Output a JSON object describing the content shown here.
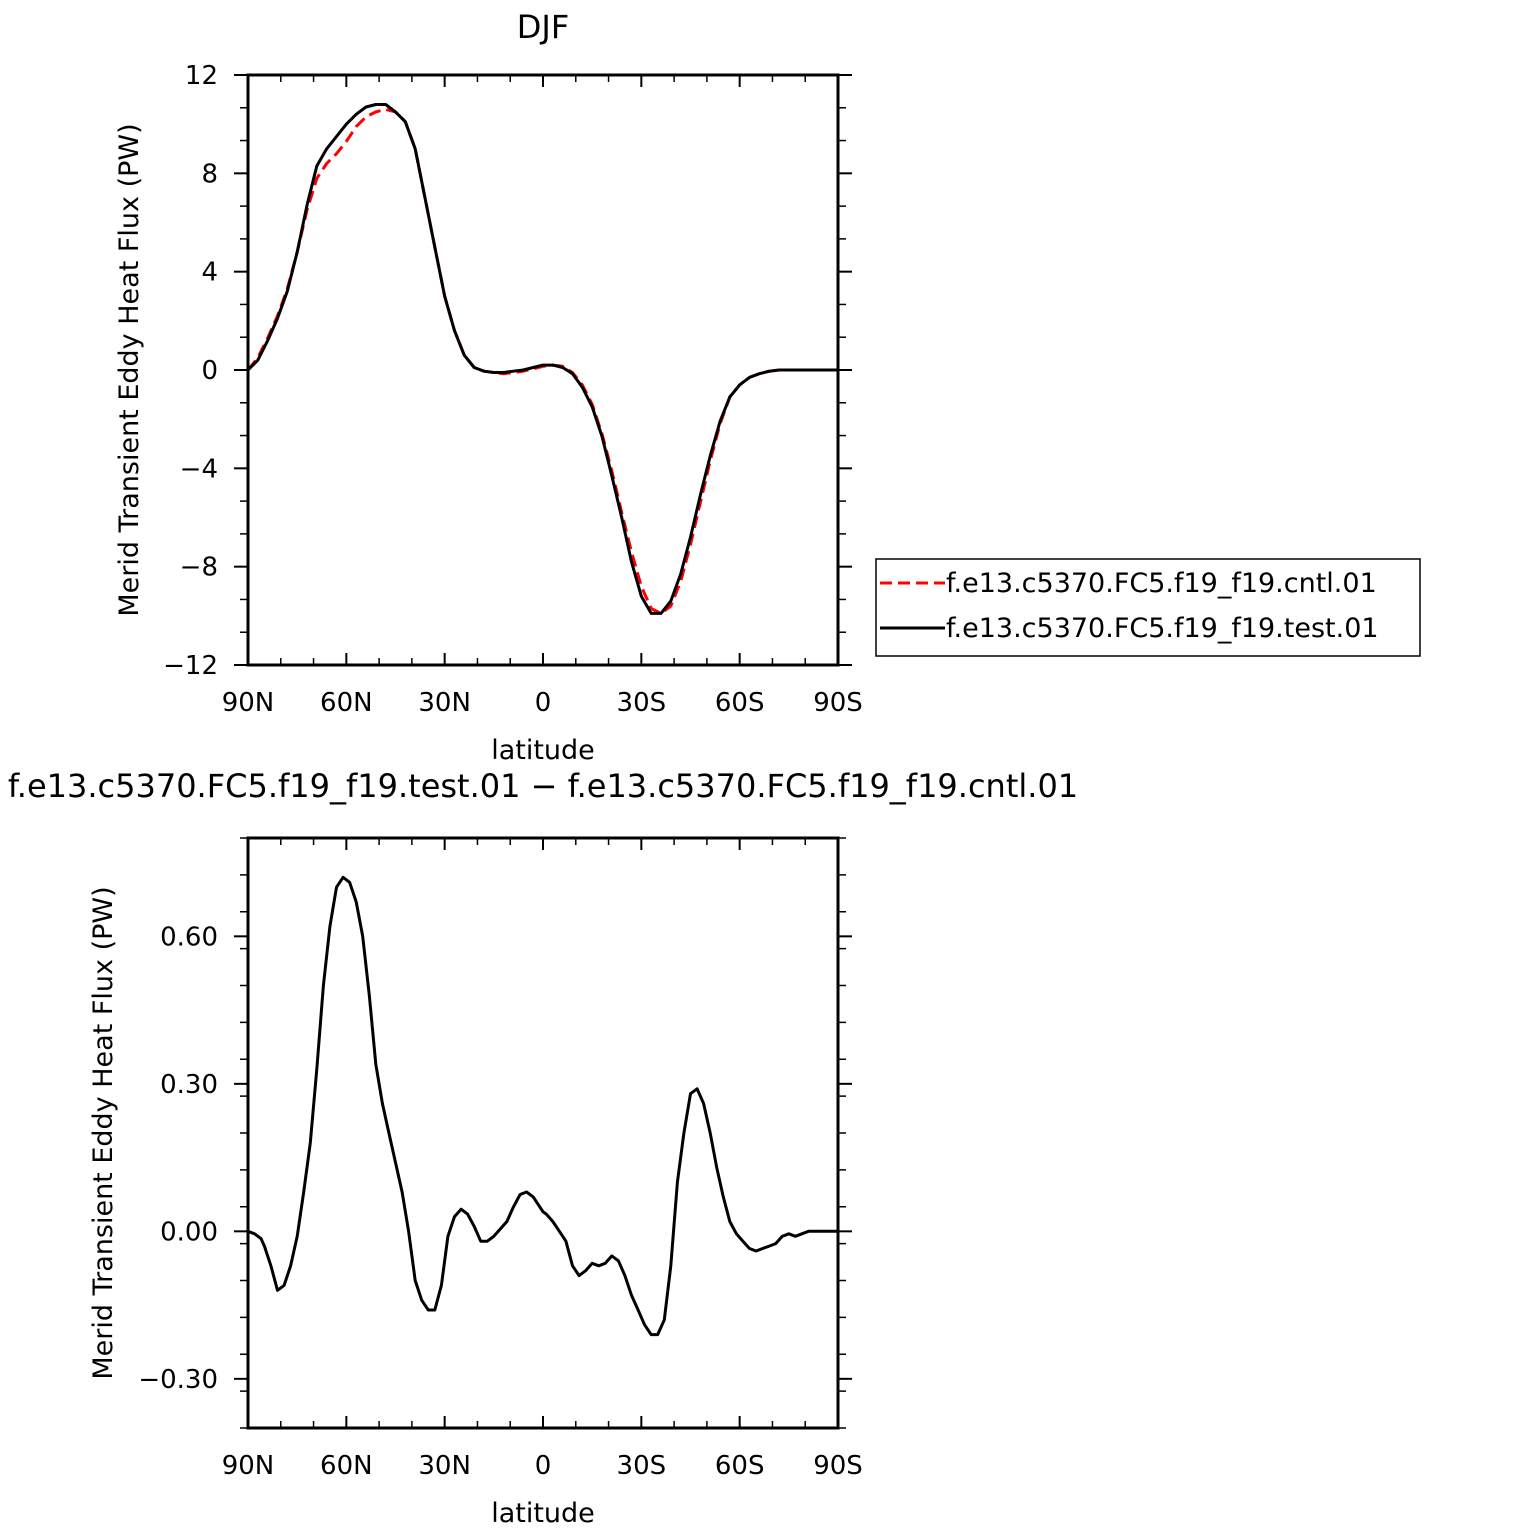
{
  "chart_data": [
    {
      "type": "line",
      "title": "DJF",
      "xlabel": "latitude",
      "ylabel": "Merid Transient Eddy Heat Flux (PW)",
      "x_ticks": [
        "90N",
        "60N",
        "30N",
        "0",
        "30S",
        "60S",
        "90S"
      ],
      "y_ticks": [
        "12",
        "8",
        "4",
        "0",
        "−4",
        "−8",
        "−12"
      ],
      "xlim": [
        90,
        -90
      ],
      "ylim": [
        -12,
        12
      ],
      "grid": false,
      "legend": "right",
      "series": [
        {
          "name": "f.e13.c5370.FC5.f19_f19.cntl.01",
          "color": "#ff0000",
          "dash": "dashed",
          "x": [
            90,
            87,
            84,
            81,
            78,
            75,
            72,
            69,
            66,
            63,
            60,
            57,
            54,
            51,
            48,
            45,
            42,
            39,
            36,
            33,
            30,
            27,
            24,
            21,
            18,
            15,
            12,
            9,
            6,
            3,
            0,
            -3,
            -6,
            -9,
            -12,
            -15,
            -18,
            -21,
            -24,
            -27,
            -30,
            -33,
            -36,
            -39,
            -42,
            -45,
            -48,
            -51,
            -54,
            -57,
            -60,
            -63,
            -66,
            -69,
            -72,
            -75,
            -78,
            -81,
            -84,
            -87,
            -90
          ],
          "values": [
            0.0,
            0.5,
            1.3,
            2.2,
            3.3,
            4.8,
            6.5,
            7.8,
            8.4,
            8.8,
            9.3,
            9.9,
            10.3,
            10.5,
            10.6,
            10.5,
            10.1,
            9.0,
            7.0,
            5.0,
            3.0,
            1.6,
            0.6,
            0.1,
            -0.05,
            -0.1,
            -0.15,
            -0.1,
            -0.05,
            0.05,
            0.15,
            0.2,
            0.15,
            -0.1,
            -0.6,
            -1.4,
            -2.6,
            -4.1,
            -5.8,
            -7.4,
            -8.8,
            -9.7,
            -9.9,
            -9.6,
            -8.6,
            -7.1,
            -5.4,
            -3.7,
            -2.2,
            -1.1,
            -0.6,
            -0.3,
            -0.15,
            -0.05,
            0.0,
            0.0,
            0.0,
            0.0,
            0.0,
            0.0,
            0.0
          ]
        },
        {
          "name": "f.e13.c5370.FC5.f19_f19.test.01",
          "color": "#000000",
          "dash": "solid",
          "x": [
            90,
            87,
            84,
            81,
            78,
            75,
            72,
            69,
            66,
            63,
            60,
            57,
            54,
            51,
            48,
            45,
            42,
            39,
            36,
            33,
            30,
            27,
            24,
            21,
            18,
            15,
            12,
            9,
            6,
            3,
            0,
            -3,
            -6,
            -9,
            -12,
            -15,
            -18,
            -21,
            -24,
            -27,
            -30,
            -33,
            -36,
            -39,
            -42,
            -45,
            -48,
            -51,
            -54,
            -57,
            -60,
            -63,
            -66,
            -69,
            -72,
            -75,
            -78,
            -81,
            -84,
            -87,
            -90
          ],
          "values": [
            0.0,
            0.4,
            1.2,
            2.1,
            3.2,
            4.8,
            6.7,
            8.3,
            9.0,
            9.5,
            10.0,
            10.4,
            10.7,
            10.8,
            10.8,
            10.5,
            10.1,
            9.0,
            7.0,
            5.0,
            3.0,
            1.6,
            0.6,
            0.1,
            -0.05,
            -0.1,
            -0.1,
            -0.05,
            0.0,
            0.1,
            0.2,
            0.2,
            0.1,
            -0.15,
            -0.7,
            -1.5,
            -2.7,
            -4.3,
            -6.0,
            -7.8,
            -9.2,
            -9.9,
            -9.9,
            -9.4,
            -8.3,
            -6.8,
            -5.1,
            -3.5,
            -2.1,
            -1.1,
            -0.6,
            -0.3,
            -0.15,
            -0.05,
            0.0,
            0.0,
            0.0,
            0.0,
            0.0,
            0.0,
            0.0
          ]
        }
      ]
    },
    {
      "type": "line",
      "title": "f.e13.c5370.FC5.f19_f19.test.01 − f.e13.c5370.FC5.f19_f19.cntl.01",
      "xlabel": "latitude",
      "ylabel": "Merid Transient Eddy Heat Flux (PW)",
      "x_ticks": [
        "90N",
        "60N",
        "30N",
        "0",
        "30S",
        "60S",
        "90S"
      ],
      "y_ticks": [
        "0.60",
        "0.30",
        "0.00",
        "−0.30"
      ],
      "xlim": [
        90,
        -90
      ],
      "ylim": [
        -0.4,
        0.8
      ],
      "grid": false,
      "series": [
        {
          "color": "#000000",
          "dash": "solid",
          "x": [
            90,
            88,
            86,
            85,
            83,
            81,
            79,
            77,
            75,
            73,
            71,
            69,
            67,
            65,
            63,
            61,
            59,
            57,
            55,
            53,
            51,
            49,
            47,
            45,
            43,
            41,
            39,
            37,
            35,
            33,
            31,
            29,
            27,
            25,
            23,
            21,
            19,
            17,
            15,
            13,
            11,
            9,
            7,
            5,
            3,
            1,
            0,
            -1,
            -3,
            -5,
            -7,
            -9,
            -11,
            -13,
            -15,
            -17,
            -19,
            -21,
            -23,
            -25,
            -27,
            -29,
            -31,
            -33,
            -35,
            -37,
            -39,
            -41,
            -43,
            -45,
            -47,
            -49,
            -51,
            -53,
            -55,
            -57,
            -59,
            -61,
            -63,
            -65,
            -67,
            -69,
            -71,
            -73,
            -75,
            -77,
            -79,
            -81,
            -83,
            -85,
            -87,
            -89,
            -90
          ],
          "values": [
            0.0,
            -0.005,
            -0.015,
            -0.03,
            -0.07,
            -0.12,
            -0.11,
            -0.07,
            -0.01,
            0.08,
            0.18,
            0.33,
            0.5,
            0.62,
            0.7,
            0.72,
            0.71,
            0.67,
            0.6,
            0.48,
            0.34,
            0.26,
            0.2,
            0.14,
            0.08,
            0.0,
            -0.1,
            -0.14,
            -0.16,
            -0.16,
            -0.11,
            -0.01,
            0.03,
            0.045,
            0.035,
            0.01,
            -0.02,
            -0.02,
            -0.01,
            0.005,
            0.02,
            0.05,
            0.075,
            0.08,
            0.07,
            0.05,
            0.04,
            0.035,
            0.02,
            0.0,
            -0.02,
            -0.07,
            -0.09,
            -0.08,
            -0.065,
            -0.07,
            -0.065,
            -0.05,
            -0.06,
            -0.09,
            -0.13,
            -0.16,
            -0.19,
            -0.21,
            -0.21,
            -0.18,
            -0.07,
            0.1,
            0.2,
            0.28,
            0.29,
            0.26,
            0.2,
            0.13,
            0.07,
            0.02,
            -0.005,
            -0.02,
            -0.035,
            -0.04,
            -0.035,
            -0.03,
            -0.025,
            -0.01,
            -0.005,
            -0.01,
            -0.005,
            0.0,
            0.0,
            0.0,
            0.0,
            0.0,
            0.0
          ]
        }
      ]
    }
  ]
}
